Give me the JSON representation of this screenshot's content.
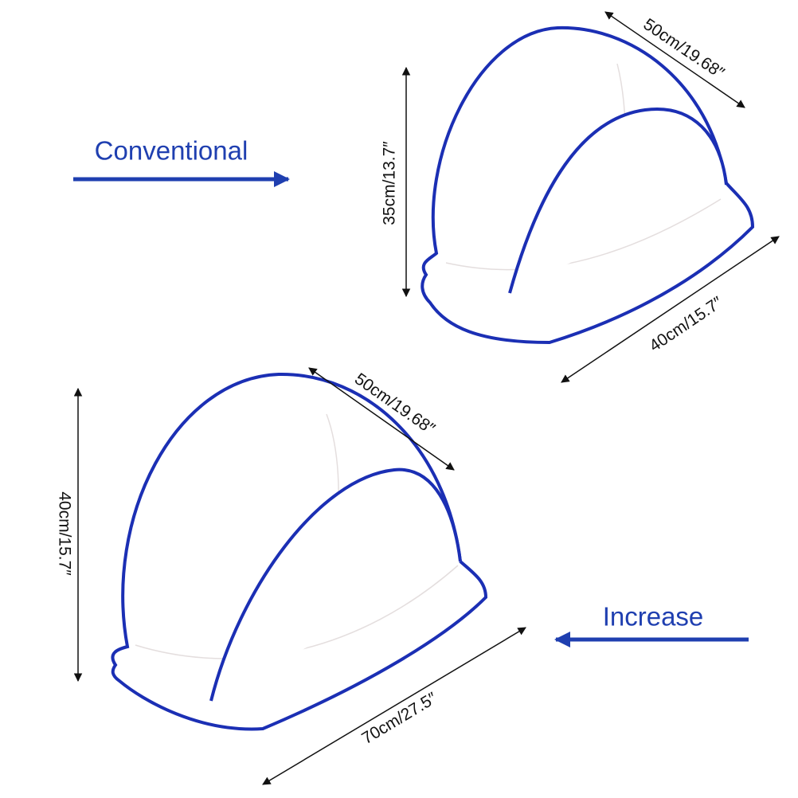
{
  "labels": {
    "conventional": "Conventional",
    "increase": "Increase"
  },
  "conventional_net": {
    "width": "50cm/19.68″",
    "height": "35cm/13.7″",
    "depth": "40cm/15.7″"
  },
  "increase_net": {
    "width": "50cm/19.68″",
    "height": "40cm/15.7″",
    "depth": "70cm/27.5″"
  }
}
